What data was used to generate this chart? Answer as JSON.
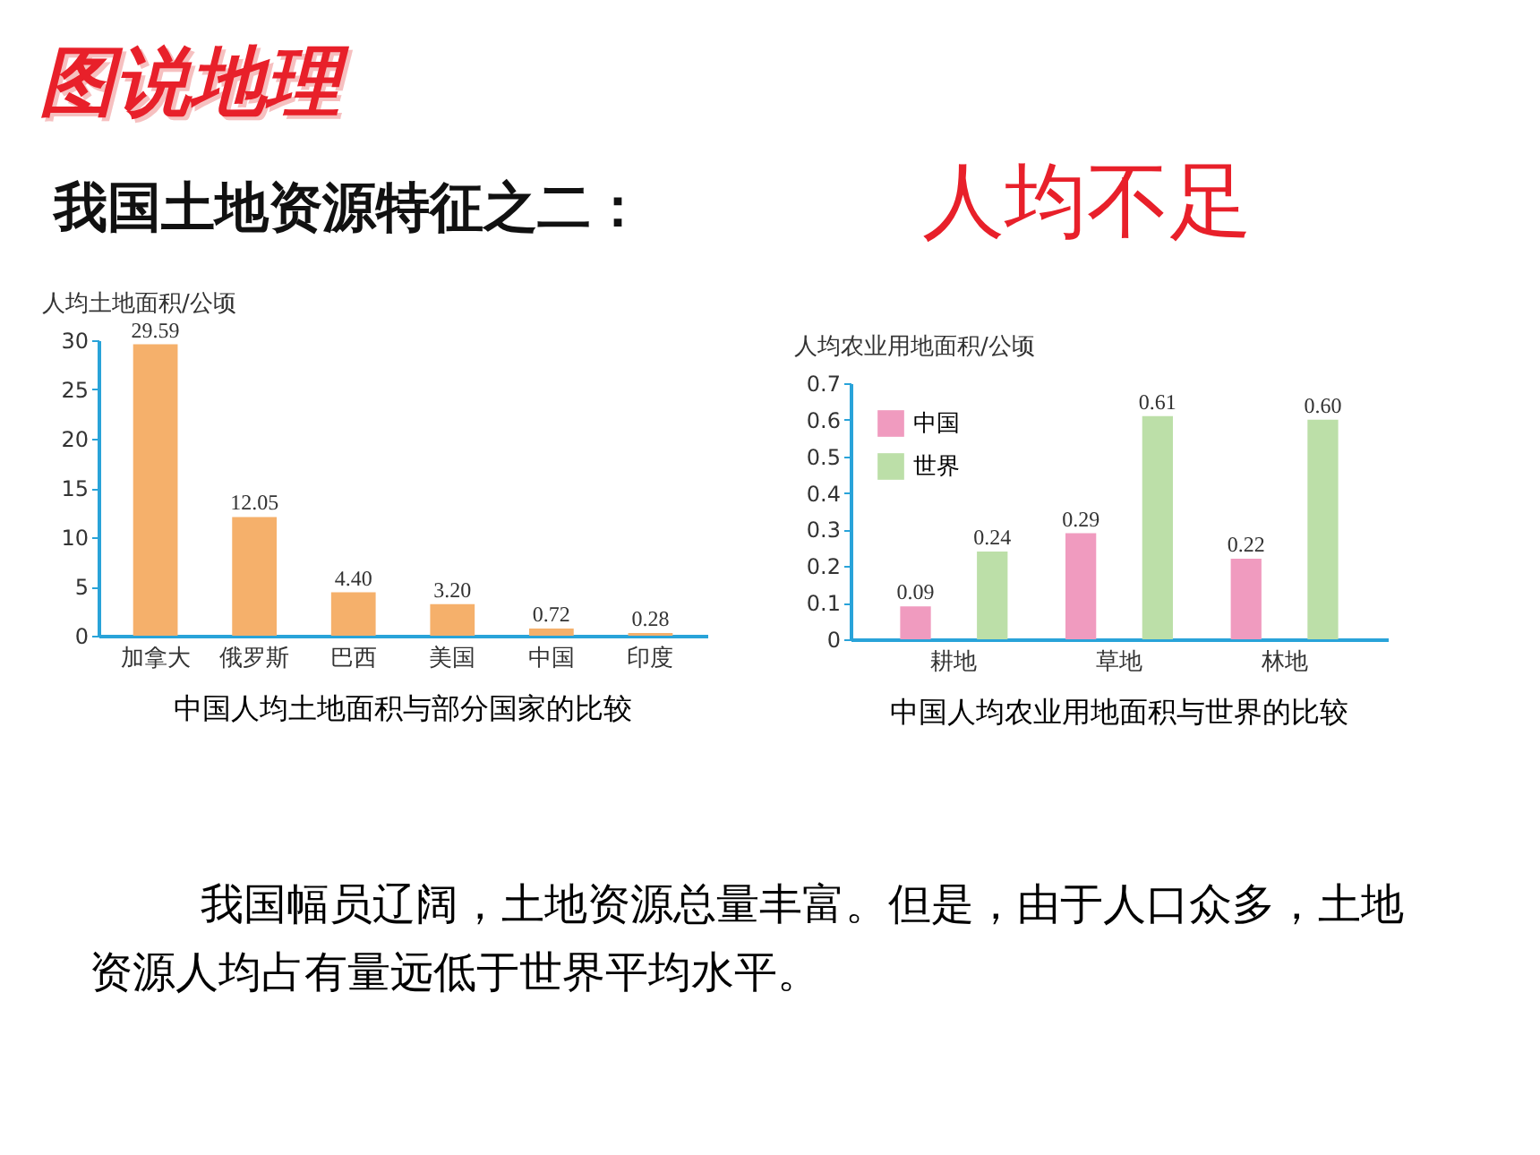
{
  "chart_data": [
    {
      "type": "bar",
      "title": "中国人均土地面积与部分国家的比较",
      "ylabel": "人均土地面积/公顷",
      "categories": [
        "加拿大",
        "俄罗斯",
        "巴西",
        "美国",
        "中国",
        "印度"
      ],
      "values": [
        29.59,
        12.05,
        4.4,
        3.2,
        0.72,
        0.28
      ],
      "value_labels": [
        "29.59",
        "12.05",
        "4.40",
        "3.20",
        "0.72",
        "0.28"
      ],
      "color": "#f5b06b",
      "ylim": [
        0,
        30
      ],
      "yticks": [
        0,
        5,
        10,
        15,
        20,
        25,
        30
      ],
      "annotations": [
        "图说地理",
        "我国土地资源特征之二：",
        "人均不足",
        "我国幅员辽阔，土地资源总量丰富。但是，由于人口众多，土地资源人均占有量远低于世界平均水平。"
      ]
    },
    {
      "type": "bar",
      "title": "中国人均农业用地面积与世界的比较",
      "ylabel": "人均农业用地面积/公顷",
      "categories": [
        "耕地",
        "草地",
        "林地"
      ],
      "legend": "top left",
      "ylim": [
        0,
        0.7
      ],
      "yticks": [
        0,
        0.1,
        0.2,
        0.3,
        0.4,
        0.5,
        0.6,
        0.7
      ],
      "series": [
        {
          "name": "中国",
          "color": "#f09bbf",
          "values": [
            0.09,
            0.29,
            0.22
          ],
          "value_labels": [
            "0.09",
            "0.29",
            "0.22"
          ]
        },
        {
          "name": "世界",
          "color": "#bcdfa8",
          "values": [
            0.24,
            0.61,
            0.6
          ],
          "value_labels": [
            "0.24",
            "0.61",
            "0.60"
          ]
        }
      ]
    }
  ]
}
